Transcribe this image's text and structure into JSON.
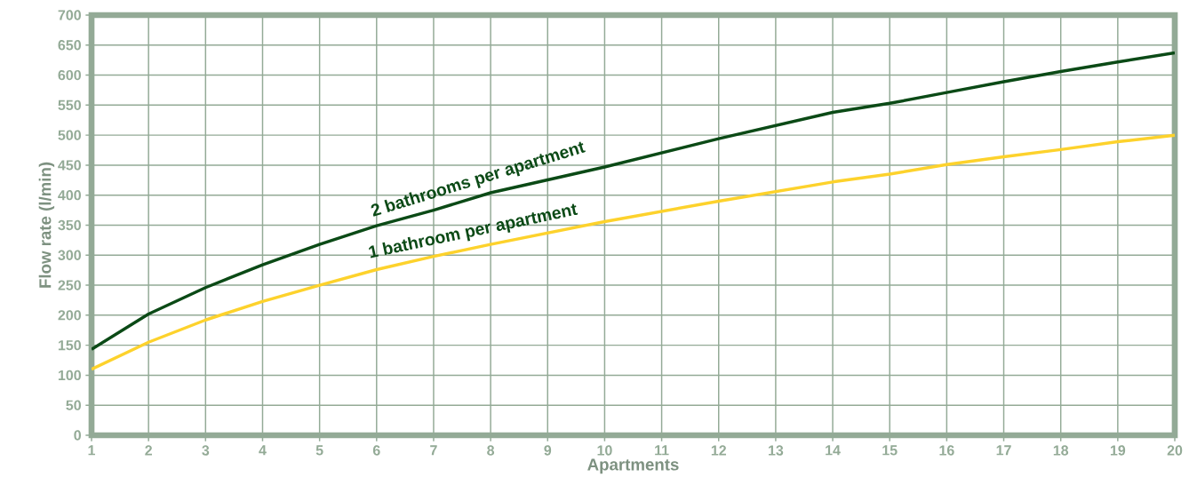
{
  "chart_data": {
    "type": "line",
    "xlabel": "Apartments",
    "ylabel": "Flow rate  (l/min)",
    "x": [
      1,
      2,
      3,
      4,
      5,
      6,
      7,
      8,
      10,
      12,
      14,
      15,
      16,
      17,
      18,
      19,
      20
    ],
    "series": [
      {
        "name": "2 bathrooms per apartment",
        "color": "#0b4a16",
        "values": [
          143,
          202,
          246,
          284,
          318,
          349,
          375,
          404,
          447,
          494,
          538,
          553,
          571,
          589,
          606,
          622,
          637
        ]
      },
      {
        "name": "1 bathroom per apartment",
        "color": "#fdd22c",
        "values": [
          110,
          155,
          192,
          223,
          250,
          276,
          298,
          318,
          356,
          390,
          422,
          435,
          451,
          464,
          476,
          489,
          500
        ]
      }
    ],
    "xlim": [
      1,
      20
    ],
    "ylim": [
      0,
      700
    ],
    "xticks": [
      1,
      2,
      3,
      4,
      5,
      6,
      7,
      8,
      9,
      10,
      11,
      12,
      13,
      14,
      15,
      16,
      17,
      18,
      19,
      20
    ],
    "yticks": [
      0,
      50,
      100,
      150,
      200,
      250,
      300,
      350,
      400,
      450,
      500,
      550,
      600,
      650,
      700
    ],
    "grid": true,
    "legend": false,
    "marker": "none",
    "line_style": "solid"
  }
}
